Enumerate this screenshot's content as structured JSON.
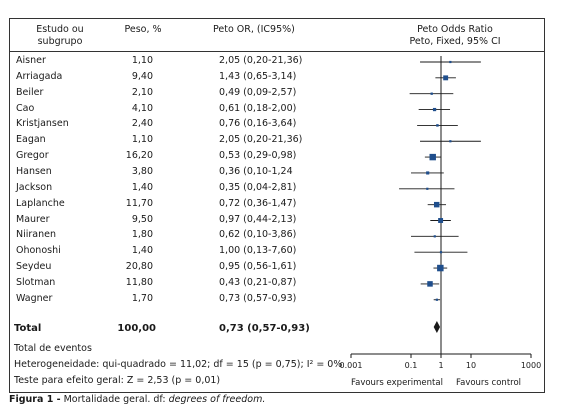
{
  "header": {
    "col_study_line1": "Estudo ou",
    "col_study_line2": "subgrupo",
    "col_weight": "Peso, %",
    "col_or": "Peto OR, (IC95%)",
    "col_plot_line1": "Peto Odds Ratio",
    "col_plot_line2": "Peto, Fixed, 95% CI"
  },
  "studies": [
    {
      "name": "Aisner",
      "weight": "1,10",
      "ci_text": "2,05 (0,20-21,36)"
    },
    {
      "name": "Arriagada",
      "weight": "9,40",
      "ci_text": "1,43 (0,65-3,14)"
    },
    {
      "name": "Beiler",
      "weight": "2,10",
      "ci_text": "0,49 (0,09-2,57)"
    },
    {
      "name": "Cao",
      "weight": "4,10",
      "ci_text": "0,61 (0,18-2,00)"
    },
    {
      "name": "Kristjansen",
      "weight": "2,40",
      "ci_text": "0,76 (0,16-3,64)"
    },
    {
      "name": "Eagan",
      "weight": "1,10",
      "ci_text": "2,05 (0,20-21,36)"
    },
    {
      "name": "Gregor",
      "weight": "16,20",
      "ci_text": "0,53 (0,29-0,98)"
    },
    {
      "name": "Hansen",
      "weight": "3,80",
      "ci_text": "0,36 (0,10-1,24"
    },
    {
      "name": "Jackson",
      "weight": "1,40",
      "ci_text": "0,35 (0,04-2,81)"
    },
    {
      "name": "Laplanche",
      "weight": "11,70",
      "ci_text": "0,72 (0,36-1,47)"
    },
    {
      "name": "Maurer",
      "weight": "9,50",
      "ci_text": "0,97 (0,44-2,13)"
    },
    {
      "name": "Niiranen",
      "weight": "1,80",
      "ci_text": "0,62 (0,10-3,86)"
    },
    {
      "name": "Ohonoshi",
      "weight": "1,40",
      "ci_text": "1,00 (0,13-7,60)"
    },
    {
      "name": "Seydeu",
      "weight": "20,80",
      "ci_text": "0,95 (0,56-1,61)"
    },
    {
      "name": "Slotman",
      "weight": "11,80",
      "ci_text": "0,43 (0,21-0,87)"
    },
    {
      "name": "Wagner",
      "weight": "1,70",
      "ci_text": "0,73 (0,57-0,93)"
    }
  ],
  "total": {
    "label": "Total",
    "weight": "100,00",
    "ci_text": "0,73 (0,57-0,93)"
  },
  "footer": {
    "events": "Total de eventos",
    "heterogeneity": "Heterogeneidade: qui-quadrado = 11,02; df = 15 (p = 0,75); I² = 0%",
    "overall_effect": "Teste para efeito geral: Z = 2,53 (p = 0,01)"
  },
  "caption": {
    "label": "Figura 1 -",
    "text": "Mortalidade geral. df:",
    "italic": "degrees of freedom."
  },
  "colors": {
    "marker": "#1f4e8c",
    "ink": "#1a1a1a",
    "diamond": "#1a1a1a"
  },
  "chart_data": {
    "type": "forest",
    "x_scale": "log",
    "xlim": [
      0.001,
      1000
    ],
    "x_ticks": [
      0.001,
      0.1,
      1,
      10,
      1000
    ],
    "x_tick_labels": [
      "0.001",
      "0.1",
      "1",
      "10",
      "1000"
    ],
    "x_label_left": "Favours experimental",
    "x_label_right": "Favours control",
    "null_line": 1,
    "studies": [
      {
        "name": "Aisner",
        "or": 2.05,
        "lo": 0.2,
        "hi": 21.36,
        "weight": 1.1
      },
      {
        "name": "Arriagada",
        "or": 1.43,
        "lo": 0.65,
        "hi": 3.14,
        "weight": 9.4
      },
      {
        "name": "Beiler",
        "or": 0.49,
        "lo": 0.09,
        "hi": 2.57,
        "weight": 2.1
      },
      {
        "name": "Cao",
        "or": 0.61,
        "lo": 0.18,
        "hi": 2.0,
        "weight": 4.1
      },
      {
        "name": "Kristjansen",
        "or": 0.76,
        "lo": 0.16,
        "hi": 3.64,
        "weight": 2.4
      },
      {
        "name": "Eagan",
        "or": 2.05,
        "lo": 0.2,
        "hi": 21.36,
        "weight": 1.1
      },
      {
        "name": "Gregor",
        "or": 0.53,
        "lo": 0.29,
        "hi": 0.98,
        "weight": 16.2
      },
      {
        "name": "Hansen",
        "or": 0.36,
        "lo": 0.1,
        "hi": 1.24,
        "weight": 3.8
      },
      {
        "name": "Jackson",
        "or": 0.35,
        "lo": 0.04,
        "hi": 2.81,
        "weight": 1.4
      },
      {
        "name": "Laplanche",
        "or": 0.72,
        "lo": 0.36,
        "hi": 1.47,
        "weight": 11.7
      },
      {
        "name": "Maurer",
        "or": 0.97,
        "lo": 0.44,
        "hi": 2.13,
        "weight": 9.5
      },
      {
        "name": "Niiranen",
        "or": 0.62,
        "lo": 0.1,
        "hi": 3.86,
        "weight": 1.8
      },
      {
        "name": "Ohonoshi",
        "or": 1.0,
        "lo": 0.13,
        "hi": 7.6,
        "weight": 1.4
      },
      {
        "name": "Seydeu",
        "or": 0.95,
        "lo": 0.56,
        "hi": 1.61,
        "weight": 20.8
      },
      {
        "name": "Slotman",
        "or": 0.43,
        "lo": 0.21,
        "hi": 0.87,
        "weight": 11.8
      },
      {
        "name": "Wagner",
        "or": 0.73,
        "lo": 0.57,
        "hi": 0.93,
        "weight": 1.7
      }
    ],
    "pooled": {
      "or": 0.73,
      "lo": 0.57,
      "hi": 0.93
    }
  }
}
